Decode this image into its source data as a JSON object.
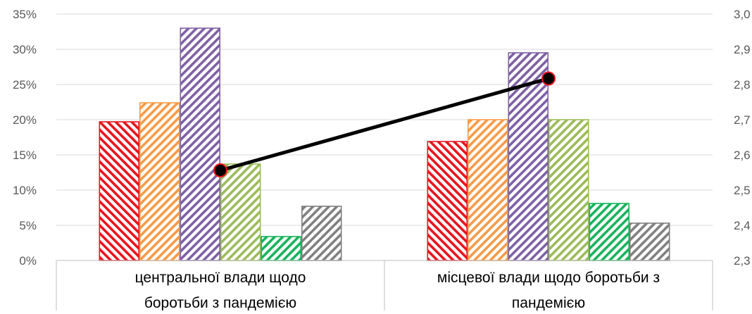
{
  "chart_data": {
    "type": "bar",
    "categories": [
      [
        "центральної влади щодо",
        "боротьби з пандемією"
      ],
      [
        "місцевої влади щодо боротьби з",
        "пандемією"
      ]
    ],
    "series": [
      {
        "values": [
          19.7,
          16.9
        ],
        "color": "#e8141e"
      },
      {
        "values": [
          22.4,
          20.0
        ],
        "color": "#f79a46"
      },
      {
        "values": [
          33.0,
          29.5
        ],
        "color": "#7e60a3"
      },
      {
        "values": [
          13.7,
          20.0
        ],
        "color": "#9cbb5a"
      },
      {
        "values": [
          3.4,
          8.1
        ],
        "color": "#17b35b"
      },
      {
        "values": [
          7.7,
          5.3
        ],
        "color": "#808080"
      }
    ],
    "line_series": {
      "values": [
        2.556,
        2.817
      ],
      "color": "#000000",
      "marker_color": "#e8141e",
      "axis": "right"
    },
    "left_axis": {
      "ticks": [
        "0%",
        "5%",
        "10%",
        "15%",
        "20%",
        "25%",
        "30%",
        "35%"
      ],
      "min": 0,
      "max": 35,
      "step": 5
    },
    "right_axis": {
      "ticks": [
        "2,3",
        "2,4",
        "2,5",
        "2,6",
        "2,7",
        "2,8",
        "2,9",
        "3,0"
      ],
      "min": 2.3,
      "max": 3.0,
      "step": 0.1
    },
    "grid": true,
    "title": "",
    "xlabel": "",
    "ylabel": ""
  }
}
